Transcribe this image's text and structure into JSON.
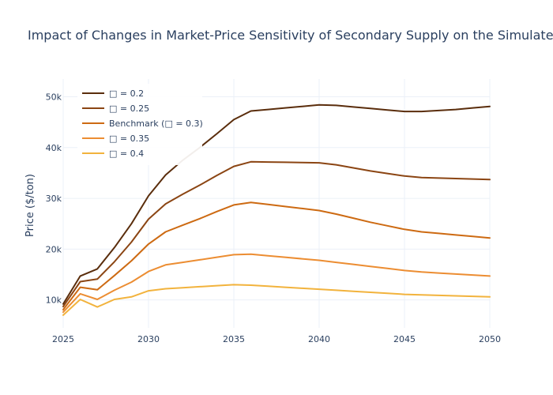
{
  "chart_data": {
    "type": "line",
    "title": "Impact of Changes in Market-Price Sensitivity of Secondary Supply on the Simulated",
    "xlabel": "",
    "ylabel": "Price ($/ton)",
    "xlim": [
      2025,
      2050
    ],
    "ylim": [
      4500,
      53500
    ],
    "x_ticks": [
      2025,
      2030,
      2035,
      2040,
      2045,
      2050
    ],
    "y_ticks": [
      10000,
      20000,
      30000,
      40000,
      50000
    ],
    "y_tick_labels": [
      "10k",
      "20k",
      "30k",
      "40k",
      "50k"
    ],
    "grid": true,
    "legend_position": "top-left",
    "x": [
      2025,
      2026,
      2027,
      2028,
      2029,
      2030,
      2031,
      2032,
      2033,
      2034,
      2035,
      2036,
      2037,
      2038,
      2039,
      2040,
      2041,
      2042,
      2043,
      2044,
      2045,
      2046,
      2047,
      2048,
      2049,
      2050
    ],
    "series": [
      {
        "name": "□ = 0.2",
        "color": "#5a2d0c",
        "values": [
          9200,
          14700,
          16100,
          20300,
          25000,
          30500,
          34600,
          37500,
          40000,
          42700,
          45500,
          47200,
          47500,
          47800,
          48100,
          48400,
          48300,
          48000,
          47700,
          47400,
          47100,
          47100,
          47300,
          47500,
          47800,
          48100
        ]
      },
      {
        "name": "□ = 0.25",
        "color": "#8b4513",
        "values": [
          8700,
          13600,
          14100,
          17500,
          21400,
          25900,
          28900,
          30800,
          32600,
          34500,
          36300,
          37200,
          37150,
          37100,
          37050,
          37000,
          36600,
          36000,
          35400,
          34900,
          34400,
          34100,
          34000,
          33900,
          33800,
          33700
        ]
      },
      {
        "name": "Benchmark (□ = 0.3)",
        "color": "#cd6a12",
        "values": [
          8100,
          12500,
          12000,
          14800,
          17700,
          21000,
          23400,
          24700,
          26000,
          27400,
          28700,
          29200,
          28800,
          28400,
          28000,
          27600,
          26900,
          26100,
          25300,
          24600,
          23900,
          23400,
          23100,
          22800,
          22500,
          22200
        ]
      },
      {
        "name": "□ = 0.35",
        "color": "#ec8d32",
        "values": [
          7600,
          11200,
          10100,
          11900,
          13500,
          15600,
          16900,
          17400,
          17900,
          18400,
          18900,
          19000,
          18700,
          18400,
          18100,
          17800,
          17400,
          17000,
          16600,
          16200,
          15800,
          15500,
          15300,
          15100,
          14900,
          14700
        ]
      },
      {
        "name": "□ = 0.4",
        "color": "#f2b33d",
        "values": [
          7000,
          10100,
          8600,
          10100,
          10600,
          11800,
          12200,
          12400,
          12600,
          12800,
          13000,
          12900,
          12700,
          12500,
          12300,
          12100,
          11900,
          11700,
          11500,
          11300,
          11100,
          11000,
          10900,
          10800,
          10700,
          10600
        ]
      }
    ]
  }
}
